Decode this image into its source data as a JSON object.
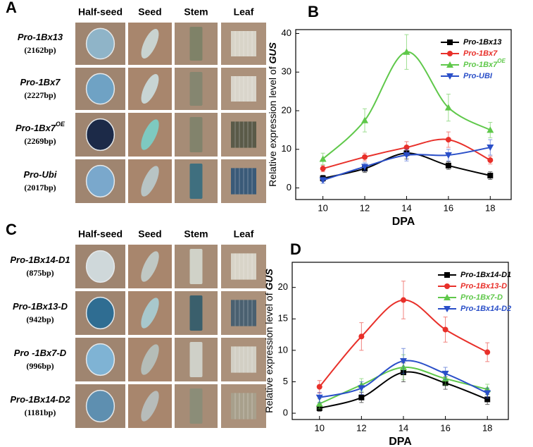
{
  "panels": [
    {
      "letter": "A",
      "columns": [
        "Half-seed",
        "Seed",
        "Stem",
        "Leaf"
      ],
      "rows": [
        {
          "name": "Pro-1Bx13",
          "bp": "(2162bp)"
        },
        {
          "name": "Pro-1Bx7",
          "bp": "(2227bp)"
        },
        {
          "name": "Pro-1Bx7",
          "sup": "OE",
          "bp": "(2269bp)"
        },
        {
          "name": "Pro-Ubi",
          "bp": "(2017bp)"
        }
      ]
    },
    {
      "letter": "C",
      "columns": [
        "Half-seed",
        "Seed",
        "Stem",
        "Leaf"
      ],
      "rows": [
        {
          "name": "Pro-1Bx14-D1",
          "bp": "(875bp)"
        },
        {
          "name": "Pro-1Bx13-D",
          "bp": "(942bp)"
        },
        {
          "name": "Pro -1Bx7-D",
          "bp": "(996bp)"
        },
        {
          "name": "Pro-1Bx14-D2",
          "bp": "(1181bp)"
        }
      ]
    }
  ],
  "chart_data": [
    {
      "type": "line",
      "panel_label": "B",
      "xlabel": "DPA",
      "ylabel": "Relative expression level of ",
      "ylabel_em": "GUS",
      "x": [
        10,
        12,
        14,
        16,
        18
      ],
      "xlim": [
        8.7,
        19
      ],
      "xticks": [
        10,
        12,
        14,
        16,
        18
      ],
      "ylim": [
        -3,
        41
      ],
      "yticks": [
        0,
        10,
        20,
        30,
        40
      ],
      "legend": "upper right",
      "series": [
        {
          "name": "Pro-1Bx13",
          "color": "#000000",
          "marker": "square",
          "values": [
            2.5,
            5,
            9,
            5.8,
            3.2
          ],
          "errors": [
            0.8,
            1,
            1.5,
            1,
            1
          ]
        },
        {
          "name": "Pro-1Bx7",
          "color": "#e8302a",
          "marker": "circle",
          "values": [
            5,
            8,
            10.5,
            12.5,
            7.2
          ],
          "errors": [
            0.8,
            1,
            1.5,
            2,
            1
          ]
        },
        {
          "name": "Pro-1Bx7",
          "sup": "OE",
          "color": "#5fc84a",
          "marker": "triangle-up",
          "values": [
            7.5,
            17.5,
            35.2,
            20.8,
            15
          ],
          "errors": [
            1.5,
            3,
            4.5,
            3.5,
            2
          ]
        },
        {
          "name": "Pro-UBI",
          "color": "#2a4fc8",
          "marker": "triangle-down",
          "values": [
            2,
            5.5,
            8.5,
            8.5,
            10.5
          ],
          "errors": [
            0.8,
            1,
            1.5,
            1.5,
            2
          ]
        }
      ]
    },
    {
      "type": "line",
      "panel_label": "D",
      "xlabel": "DPA",
      "ylabel": "Relative expression level of ",
      "ylabel_em": "GUS",
      "x": [
        10,
        12,
        14,
        16,
        18
      ],
      "xlim": [
        8.7,
        19
      ],
      "xticks": [
        10,
        12,
        14,
        16,
        18
      ],
      "ylim": [
        -1,
        24
      ],
      "yticks": [
        0,
        5,
        10,
        15,
        20
      ],
      "legend": "upper right",
      "series": [
        {
          "name": "Pro-1Bx14-D1",
          "color": "#000000",
          "marker": "square",
          "values": [
            0.8,
            2.5,
            6.5,
            4.8,
            2.2
          ],
          "errors": [
            0.5,
            0.8,
            1.5,
            1,
            0.8
          ]
        },
        {
          "name": "Pro-1Bx13-D",
          "color": "#e8302a",
          "marker": "circle",
          "values": [
            4.2,
            12.2,
            18,
            13.3,
            9.7
          ],
          "errors": [
            1,
            2.2,
            3,
            2,
            1.5
          ]
        },
        {
          "name": "Pro-1Bx7-D",
          "color": "#5fc84a",
          "marker": "triangle-up",
          "values": [
            1.5,
            4.5,
            7.3,
            5.5,
            3.8
          ],
          "errors": [
            0.8,
            1,
            2,
            1,
            0.8
          ]
        },
        {
          "name": "Pro-1Bx14-D2",
          "color": "#2a4fc8",
          "marker": "triangle-down",
          "values": [
            2.5,
            4,
            8.3,
            6.3,
            3.2
          ],
          "errors": [
            0.8,
            1,
            2,
            1,
            0.8
          ]
        }
      ]
    }
  ]
}
